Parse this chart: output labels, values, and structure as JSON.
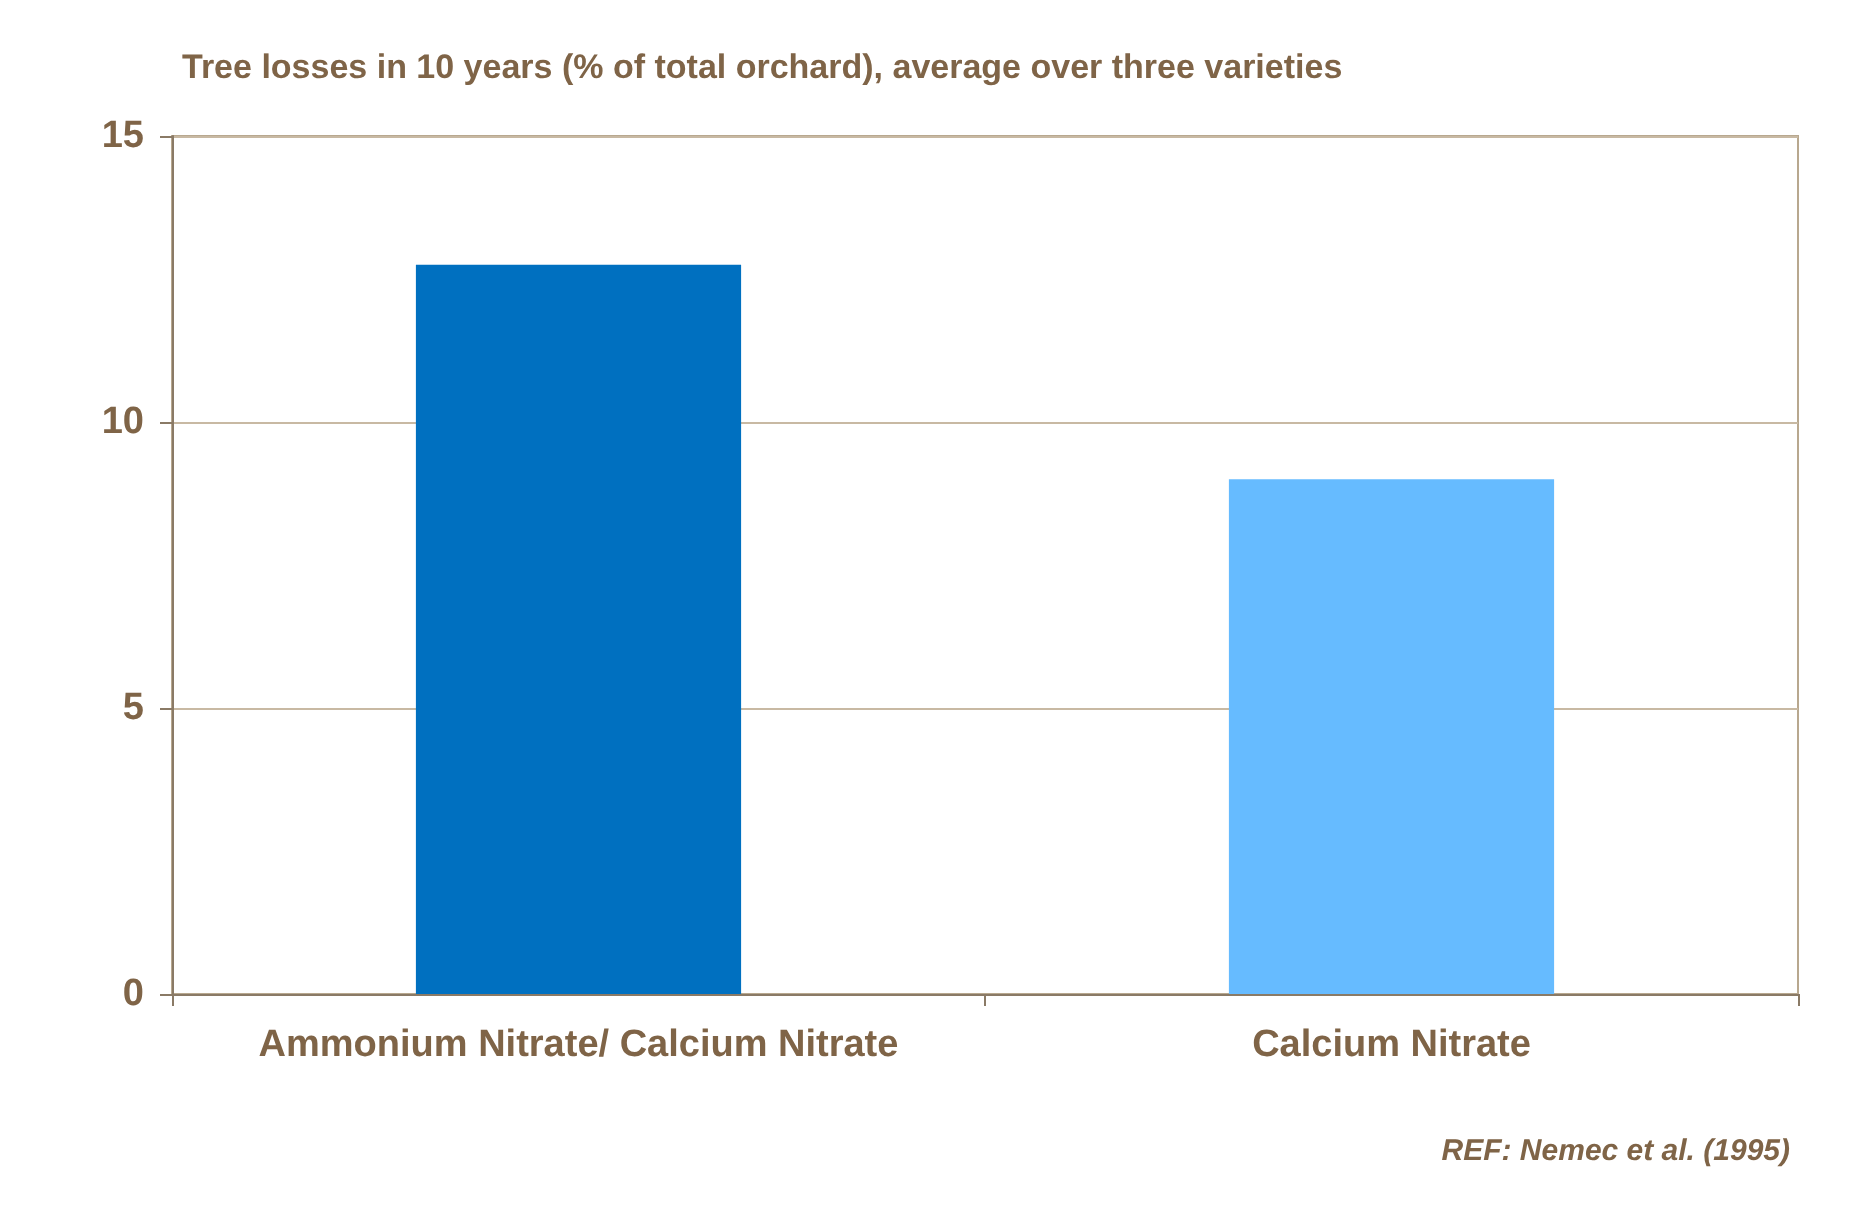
{
  "chart_data": {
    "type": "bar",
    "title": "Tree losses in 10 years (% of total orchard), average over three varieties",
    "categories": [
      "Ammonium Nitrate/ Calcium Nitrate",
      "Calcium Nitrate"
    ],
    "values": [
      12.75,
      9.0
    ],
    "colors": [
      "#0070c0",
      "#66bbff"
    ],
    "ylim": [
      0,
      15
    ],
    "yticks": [
      0,
      5,
      10,
      15
    ],
    "grid": "y",
    "annotations": [
      "REF: Nemec et al. (1995)"
    ]
  }
}
